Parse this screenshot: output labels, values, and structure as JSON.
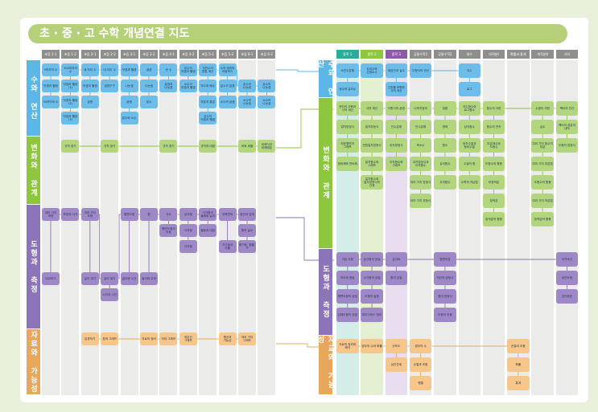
{
  "title": "초 · 중 · 고 수학 개념연결 지도",
  "colors": {
    "number": "#5cb6e6",
    "change": "#8dc63f",
    "geometry": "#8c74b8",
    "data": "#e8a85c",
    "number_box": "#6cbde9",
    "change_box": "#b2d67e",
    "geometry_box": "#9f88c8",
    "data_box": "#f6c68a",
    "middle1": "#2bab9a",
    "middle2": "#8dc63f",
    "middle3": "#8e5aa8",
    "header_gray": "#8e8e8c"
  },
  "left": {
    "columns": [
      "초등 1-1",
      "초등 1-2",
      "초등 2-1",
      "초등 2-2",
      "초등 3-1",
      "초등 3-2",
      "초등 4-1",
      "초등 4-2",
      "초등 5-1",
      "초등 5-2",
      "초등 6-1",
      "초등 6-2"
    ],
    "bands": [
      {
        "name": "수와 연산",
        "key": "number",
        "nodes": [
          [
            "9까지의 수",
            "덧셈과 뺄셈",
            "50까지의 수"
          ],
          [
            "100까지의 수",
            "덧셈과 뺄셈(1)",
            "덧셈과 뺄셈(2)",
            "덧셈과 뺄셈(3)"
          ],
          [
            "세 자리 수",
            "덧셈과 뺄셈",
            "곱셈"
          ],
          [
            "네 자리 수",
            "곱셈구구"
          ],
          [
            "덧셈과 뺄셈",
            "나눗셈",
            "곱셈",
            "분수와 소수"
          ],
          [
            "곱셈",
            "나눗셈",
            "분수"
          ],
          [
            "큰 수",
            "곱셈과 나눗셈"
          ],
          [
            "분수의 덧셈과 뺄셈",
            "소수의 덧셈과 뺄셈"
          ],
          [
            "자연수의 혼합 계산",
            "약수와 배수",
            "약분과 통분",
            "분수의 덧셈과 뺄셈"
          ],
          [
            "수의 범위와 어림하기",
            "분수의 곱셈",
            "소수의 곱셈"
          ],
          [
            "",
            "분수의 나눗셈",
            "소수의 나눗셈"
          ],
          [
            "",
            "분수의 나눗셈",
            "소수의 나눗셈"
          ]
        ]
      },
      {
        "name": "변화와 관계",
        "key": "change",
        "nodes": [
          [],
          [
            "규칙 찾기"
          ],
          [],
          [
            "규칙 찾기"
          ],
          [],
          [],
          [
            "규칙 찾기"
          ],
          [],
          [
            "규칙과 대응"
          ],
          [],
          [
            "비와 비율"
          ],
          [
            "비례식과 비례배분"
          ]
        ]
      },
      {
        "name": "도형과 측정",
        "key": "geometry",
        "nodes": [
          [
            "여러 가지 모양",
            "",
            "",
            "",
            "비교하기"
          ],
          [
            "모양과 시각"
          ],
          [
            "여러 가지 도형",
            "",
            "",
            "",
            "길이 재기"
          ],
          [
            "",
            "",
            "",
            "",
            "길이 재기",
            "시각과 시간"
          ],
          [
            "평면도형",
            "",
            "",
            "",
            "길이와 시간"
          ],
          [
            "원",
            "",
            "",
            "",
            "들이와 무게"
          ],
          [
            "각도",
            "평면도형의 이동"
          ],
          [
            "삼각형",
            "사각형",
            "다각형"
          ],
          [
            "다각형의 둘레와 넓이",
            "합동과 대칭"
          ],
          [
            "직육면체",
            "",
            "각기둥과 각뿔"
          ],
          [
            "공간과 입체",
            "원의 넓이",
            "원기둥, 원뿔, 구"
          ],
          []
        ]
      },
      {
        "name": "자료와 가능성",
        "key": "data",
        "nodes": [
          [],
          [],
          [
            "분류하기"
          ],
          [
            "표와 그래프"
          ],
          [],
          [
            "자료의 정리"
          ],
          [
            "막대 그래프"
          ],
          [
            "꺾은선 그래프"
          ],
          [],
          [
            "평균과 가능성"
          ],
          [
            "여러 가지 그래프"
          ],
          []
        ]
      }
    ]
  },
  "right": {
    "columns": [
      "중학 1",
      "중학 2",
      "중학 3",
      "공통수학1",
      "공통수학2",
      "대수",
      "미적분Ⅰ",
      "확률과 통계",
      "미적분Ⅱ",
      "기하"
    ],
    "bands": [
      {
        "name": "수와 연산",
        "key": "number",
        "nodes": [
          [
            "소인수분해",
            "정수와 유리수"
          ],
          [
            "유리수와 순환소수"
          ],
          [
            "제곱근과 실수",
            "근호를 포함한 식의 계산"
          ],
          [
            "다항식의 연산"
          ],
          [],
          [
            "지수",
            "로그"
          ],
          [],
          [],
          [],
          []
        ]
      },
      {
        "name": "변화와 관계",
        "key": "change",
        "nodes": [
          [
            "문자의 사용과 식의 계산",
            "일차방정식",
            "좌표평면과 그래프",
            "정비례와 반비례"
          ],
          [
            "식의 계산",
            "일차부등식",
            "연립일차방정식",
            "일차함수와 그래프",
            "일차함수와 일차방정식의 관계"
          ],
          [
            "다항식의 곱셈",
            "인수분해",
            "이차방정식",
            "이차함수와 그래프"
          ],
          [
            "나머지정리",
            "인수분해",
            "복소수",
            "이차방정식과 이차함수",
            "여러 가지 방정식",
            "여러 가지 부등식"
          ],
          [
            "집합",
            "명제",
            "함수",
            "유리함수",
            "무리함수"
          ],
          [
            "지수함수와 로그함수",
            "삼각함수",
            "등차수열과 등비수열",
            "수열의 합",
            "수학적 귀납법"
          ],
          [
            "함수의 극한",
            "함수의 연속",
            "미분계수와 도함수",
            "도함수의 활용",
            "부정적분",
            "정적분",
            "정적분의 활용"
          ],
          [],
          [
            "수열의 극한",
            "급수",
            "여러 가지 함수의 미분",
            "여러 가지 미분법",
            "도함수의 활용",
            "여러 가지 적분법",
            "정적분의 활용"
          ],
          [
            "벡터의 연산",
            "벡터의 성분과 내적",
            "도형의 방정식"
          ]
        ]
      },
      {
        "name": "도형과 측정",
        "key": "geometry",
        "nodes": [
          [
            "기본 도형",
            "작도와 합동",
            "평면도형의 성질",
            "입체도형의 성질"
          ],
          [
            "삼각형의 성질",
            "사각형의 성질",
            "도형의 닮음",
            "피타고라스 정리"
          ],
          [
            "삼각비",
            "원의 성질"
          ],
          [],
          [
            "평면좌표",
            "직선의 방정식",
            "원의 방정식",
            "도형의 이동"
          ],
          [],
          [],
          [],
          [],
          [
            "이차곡선",
            "공간도형",
            "공간좌표"
          ]
        ]
      },
      {
        "name": "자료와 가능성",
        "key": "data",
        "nodes": [
          [
            "자료의 정리와 해석"
          ],
          [
            "경우의 수와 확률"
          ],
          [
            "산포도",
            "상관관계"
          ],
          [
            "경우의 수",
            "순열과 조합",
            "행렬"
          ],
          [],
          [],
          [],
          [
            "순열과 조합",
            "확률",
            "통계"
          ],
          [],
          []
        ]
      }
    ]
  }
}
